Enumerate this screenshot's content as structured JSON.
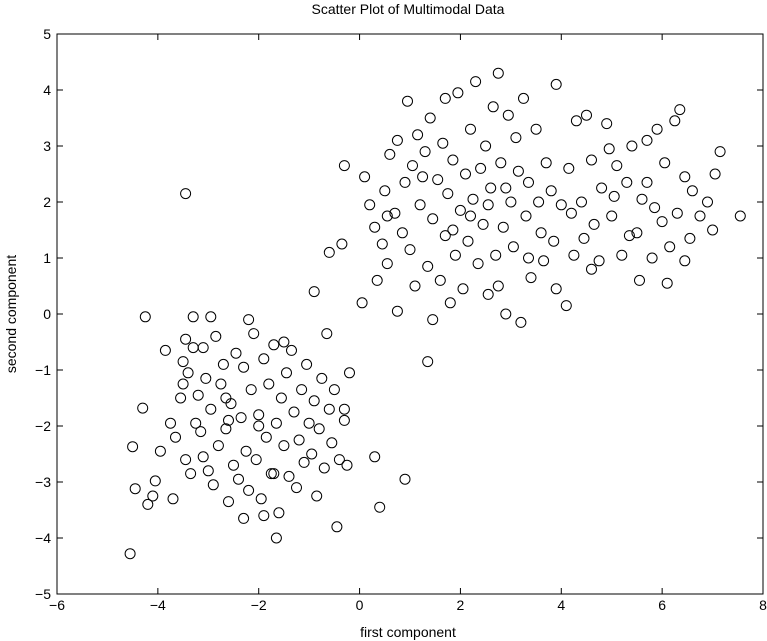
{
  "chart_data": {
    "type": "scatter",
    "title": "Scatter Plot of Multimodal Data",
    "xlabel": "first component",
    "ylabel": "second component",
    "xlim": [
      -6,
      8
    ],
    "ylim": [
      -5,
      5
    ],
    "xticks": [
      "−6",
      "−4",
      "−2",
      "0",
      "2",
      "4",
      "6",
      "8"
    ],
    "yticks": [
      "5",
      "4",
      "3",
      "2",
      "1",
      "0",
      "−1",
      "−2",
      "−3",
      "−4",
      "−5"
    ],
    "grid": false,
    "marker": "circle-open",
    "marker_color": "#000000",
    "series": [
      {
        "points": [
          [
            -4.55,
            -4.28
          ],
          [
            -4.45,
            -3.12
          ],
          [
            -4.5,
            -2.37
          ],
          [
            -4.3,
            -1.68
          ],
          [
            -4.2,
            -3.4
          ],
          [
            -4.1,
            -3.25
          ],
          [
            -4.05,
            -2.98
          ],
          [
            -3.95,
            -2.45
          ],
          [
            -3.85,
            -0.65
          ],
          [
            -3.75,
            -1.95
          ],
          [
            -3.7,
            -3.3
          ],
          [
            -3.65,
            -2.2
          ],
          [
            -3.55,
            -1.5
          ],
          [
            -3.5,
            -0.85
          ],
          [
            -3.45,
            -0.45
          ],
          [
            -3.45,
            -2.6
          ],
          [
            -3.4,
            -1.05
          ],
          [
            -3.35,
            -2.85
          ],
          [
            -3.3,
            -0.6
          ],
          [
            -3.25,
            -1.95
          ],
          [
            -3.2,
            -1.45
          ],
          [
            -3.15,
            -2.1
          ],
          [
            -3.1,
            -2.55
          ],
          [
            -3.05,
            -1.15
          ],
          [
            -3.0,
            -2.8
          ],
          [
            -2.95,
            -1.7
          ],
          [
            -2.9,
            -3.05
          ],
          [
            -2.85,
            -0.4
          ],
          [
            -2.8,
            -2.35
          ],
          [
            -2.75,
            -1.25
          ],
          [
            -2.7,
            -0.9
          ],
          [
            -2.65,
            -2.05
          ],
          [
            -2.6,
            -3.35
          ],
          [
            -2.55,
            -1.6
          ],
          [
            -2.5,
            -2.7
          ],
          [
            -2.45,
            -0.7
          ],
          [
            -2.4,
            -2.95
          ],
          [
            -2.35,
            -1.85
          ],
          [
            -2.3,
            -0.95
          ],
          [
            -2.25,
            -2.45
          ],
          [
            -2.2,
            -3.15
          ],
          [
            -2.15,
            -1.35
          ],
          [
            -2.1,
            -0.35
          ],
          [
            -2.05,
            -2.6
          ],
          [
            -2.0,
            -1.8
          ],
          [
            -1.95,
            -3.3
          ],
          [
            -1.9,
            -0.8
          ],
          [
            -1.85,
            -2.2
          ],
          [
            -1.8,
            -1.25
          ],
          [
            -1.75,
            -2.85
          ],
          [
            -1.7,
            -0.55
          ],
          [
            -1.65,
            -1.95
          ],
          [
            -1.6,
            -3.55
          ],
          [
            -1.55,
            -1.5
          ],
          [
            -1.5,
            -2.35
          ],
          [
            -1.45,
            -1.05
          ],
          [
            -1.4,
            -2.9
          ],
          [
            -1.35,
            -0.65
          ],
          [
            -1.3,
            -1.75
          ],
          [
            -1.25,
            -3.1
          ],
          [
            -1.2,
            -2.25
          ],
          [
            -1.15,
            -1.35
          ],
          [
            -1.1,
            -2.65
          ],
          [
            -1.05,
            -0.9
          ],
          [
            -1.0,
            -1.95
          ],
          [
            -0.95,
            -2.5
          ],
          [
            -0.9,
            -1.55
          ],
          [
            -0.85,
            -3.25
          ],
          [
            -0.8,
            -2.05
          ],
          [
            -0.75,
            -1.15
          ],
          [
            -0.7,
            -2.75
          ],
          [
            -0.65,
            -0.35
          ],
          [
            -0.6,
            -1.7
          ],
          [
            -0.55,
            -2.3
          ],
          [
            -0.5,
            -1.35
          ],
          [
            -0.45,
            -3.8
          ],
          [
            -0.4,
            -2.6
          ],
          [
            -0.3,
            -1.9
          ],
          [
            -0.25,
            -2.7
          ],
          [
            -0.2,
            -1.05
          ],
          [
            -1.9,
            -3.6
          ],
          [
            -1.65,
            -4.0
          ],
          [
            -2.3,
            -3.65
          ],
          [
            -3.3,
            -0.05
          ],
          [
            -2.95,
            -0.05
          ],
          [
            -2.2,
            -0.1
          ],
          [
            -4.25,
            -0.05
          ],
          [
            -3.5,
            -1.25
          ],
          [
            -2.6,
            -1.9
          ],
          [
            -2.0,
            -2.0
          ],
          [
            -1.7,
            -2.85
          ],
          [
            -1.5,
            -0.5
          ],
          [
            -3.1,
            -0.6
          ],
          [
            -2.65,
            -1.5
          ],
          [
            0.4,
            -3.45
          ],
          [
            0.3,
            -2.55
          ],
          [
            0.9,
            -2.95
          ],
          [
            -0.3,
            -1.7
          ],
          [
            -3.45,
            2.15
          ]
        ]
      },
      {
        "points": [
          [
            -0.9,
            0.4
          ],
          [
            -0.6,
            1.1
          ],
          [
            -0.35,
            1.25
          ],
          [
            -0.3,
            2.65
          ],
          [
            0.05,
            0.2
          ],
          [
            0.1,
            2.45
          ],
          [
            0.2,
            1.95
          ],
          [
            0.3,
            1.55
          ],
          [
            0.45,
            1.25
          ],
          [
            0.5,
            2.2
          ],
          [
            0.55,
            0.9
          ],
          [
            0.6,
            2.85
          ],
          [
            0.7,
            1.8
          ],
          [
            0.75,
            3.1
          ],
          [
            0.85,
            1.45
          ],
          [
            0.9,
            2.35
          ],
          [
            0.95,
            3.8
          ],
          [
            1.0,
            1.15
          ],
          [
            1.05,
            2.65
          ],
          [
            1.1,
            0.5
          ],
          [
            1.15,
            3.2
          ],
          [
            1.2,
            1.95
          ],
          [
            1.3,
            2.9
          ],
          [
            1.35,
            0.85
          ],
          [
            1.4,
            3.5
          ],
          [
            1.45,
            1.7
          ],
          [
            1.55,
            2.4
          ],
          [
            1.6,
            0.6
          ],
          [
            1.65,
            3.05
          ],
          [
            1.7,
            1.4
          ],
          [
            1.75,
            2.15
          ],
          [
            1.8,
            0.2
          ],
          [
            1.85,
            2.75
          ],
          [
            1.9,
            1.05
          ],
          [
            1.95,
            3.95
          ],
          [
            2.0,
            1.85
          ],
          [
            2.05,
            0.45
          ],
          [
            2.1,
            2.5
          ],
          [
            2.15,
            1.3
          ],
          [
            2.2,
            3.3
          ],
          [
            2.25,
            2.05
          ],
          [
            2.3,
            4.15
          ],
          [
            2.35,
            0.9
          ],
          [
            2.4,
            2.6
          ],
          [
            2.45,
            1.6
          ],
          [
            2.5,
            3.0
          ],
          [
            2.55,
            0.35
          ],
          [
            2.6,
            2.25
          ],
          [
            2.65,
            3.7
          ],
          [
            2.7,
            1.05
          ],
          [
            2.75,
            4.3
          ],
          [
            2.8,
            2.7
          ],
          [
            2.85,
            1.55
          ],
          [
            2.9,
            0.0
          ],
          [
            2.95,
            3.55
          ],
          [
            3.0,
            2.0
          ],
          [
            3.05,
            1.2
          ],
          [
            3.1,
            3.15
          ],
          [
            3.15,
            2.55
          ],
          [
            3.2,
            -0.15
          ],
          [
            3.25,
            3.85
          ],
          [
            3.3,
            1.75
          ],
          [
            3.35,
            2.35
          ],
          [
            3.4,
            0.65
          ],
          [
            3.5,
            3.3
          ],
          [
            3.55,
            2.0
          ],
          [
            3.6,
            1.45
          ],
          [
            3.7,
            2.7
          ],
          [
            3.8,
            2.2
          ],
          [
            3.85,
            1.3
          ],
          [
            3.9,
            4.1
          ],
          [
            4.0,
            1.95
          ],
          [
            4.1,
            0.15
          ],
          [
            4.15,
            2.6
          ],
          [
            4.25,
            1.05
          ],
          [
            4.3,
            3.45
          ],
          [
            4.4,
            2.0
          ],
          [
            4.45,
            1.35
          ],
          [
            4.5,
            3.55
          ],
          [
            4.6,
            2.75
          ],
          [
            4.65,
            1.6
          ],
          [
            4.75,
            0.95
          ],
          [
            4.8,
            2.25
          ],
          [
            4.9,
            3.4
          ],
          [
            5.0,
            1.75
          ],
          [
            5.1,
            2.65
          ],
          [
            5.2,
            1.05
          ],
          [
            5.3,
            2.35
          ],
          [
            5.4,
            3.0
          ],
          [
            5.5,
            1.45
          ],
          [
            5.55,
            0.6
          ],
          [
            5.6,
            2.05
          ],
          [
            5.7,
            3.1
          ],
          [
            5.8,
            1.0
          ],
          [
            5.9,
            3.3
          ],
          [
            6.0,
            1.65
          ],
          [
            6.05,
            2.7
          ],
          [
            6.15,
            1.2
          ],
          [
            6.25,
            3.45
          ],
          [
            6.3,
            1.8
          ],
          [
            6.35,
            3.65
          ],
          [
            6.45,
            0.95
          ],
          [
            6.6,
            2.2
          ],
          [
            6.75,
            1.75
          ],
          [
            6.9,
            2.0
          ],
          [
            7.0,
            1.5
          ],
          [
            7.05,
            2.5
          ],
          [
            7.15,
            2.9
          ],
          [
            7.55,
            1.75
          ],
          [
            0.75,
            0.05
          ],
          [
            1.35,
            -0.85
          ],
          [
            1.45,
            -0.1
          ],
          [
            2.75,
            0.5
          ],
          [
            1.85,
            1.5
          ],
          [
            2.2,
            1.75
          ],
          [
            3.65,
            0.95
          ],
          [
            4.6,
            0.8
          ],
          [
            5.35,
            1.4
          ],
          [
            6.1,
            0.55
          ],
          [
            0.55,
            1.75
          ],
          [
            1.25,
            2.45
          ],
          [
            2.55,
            1.95
          ],
          [
            3.9,
            0.45
          ],
          [
            4.95,
            2.95
          ],
          [
            5.7,
            2.35
          ],
          [
            6.55,
            1.35
          ],
          [
            0.35,
            0.6
          ],
          [
            1.7,
            3.85
          ],
          [
            2.9,
            2.25
          ],
          [
            3.35,
            1.0
          ],
          [
            4.2,
            1.8
          ],
          [
            5.05,
            2.1
          ],
          [
            5.85,
            1.9
          ],
          [
            6.45,
            2.45
          ]
        ]
      }
    ]
  }
}
